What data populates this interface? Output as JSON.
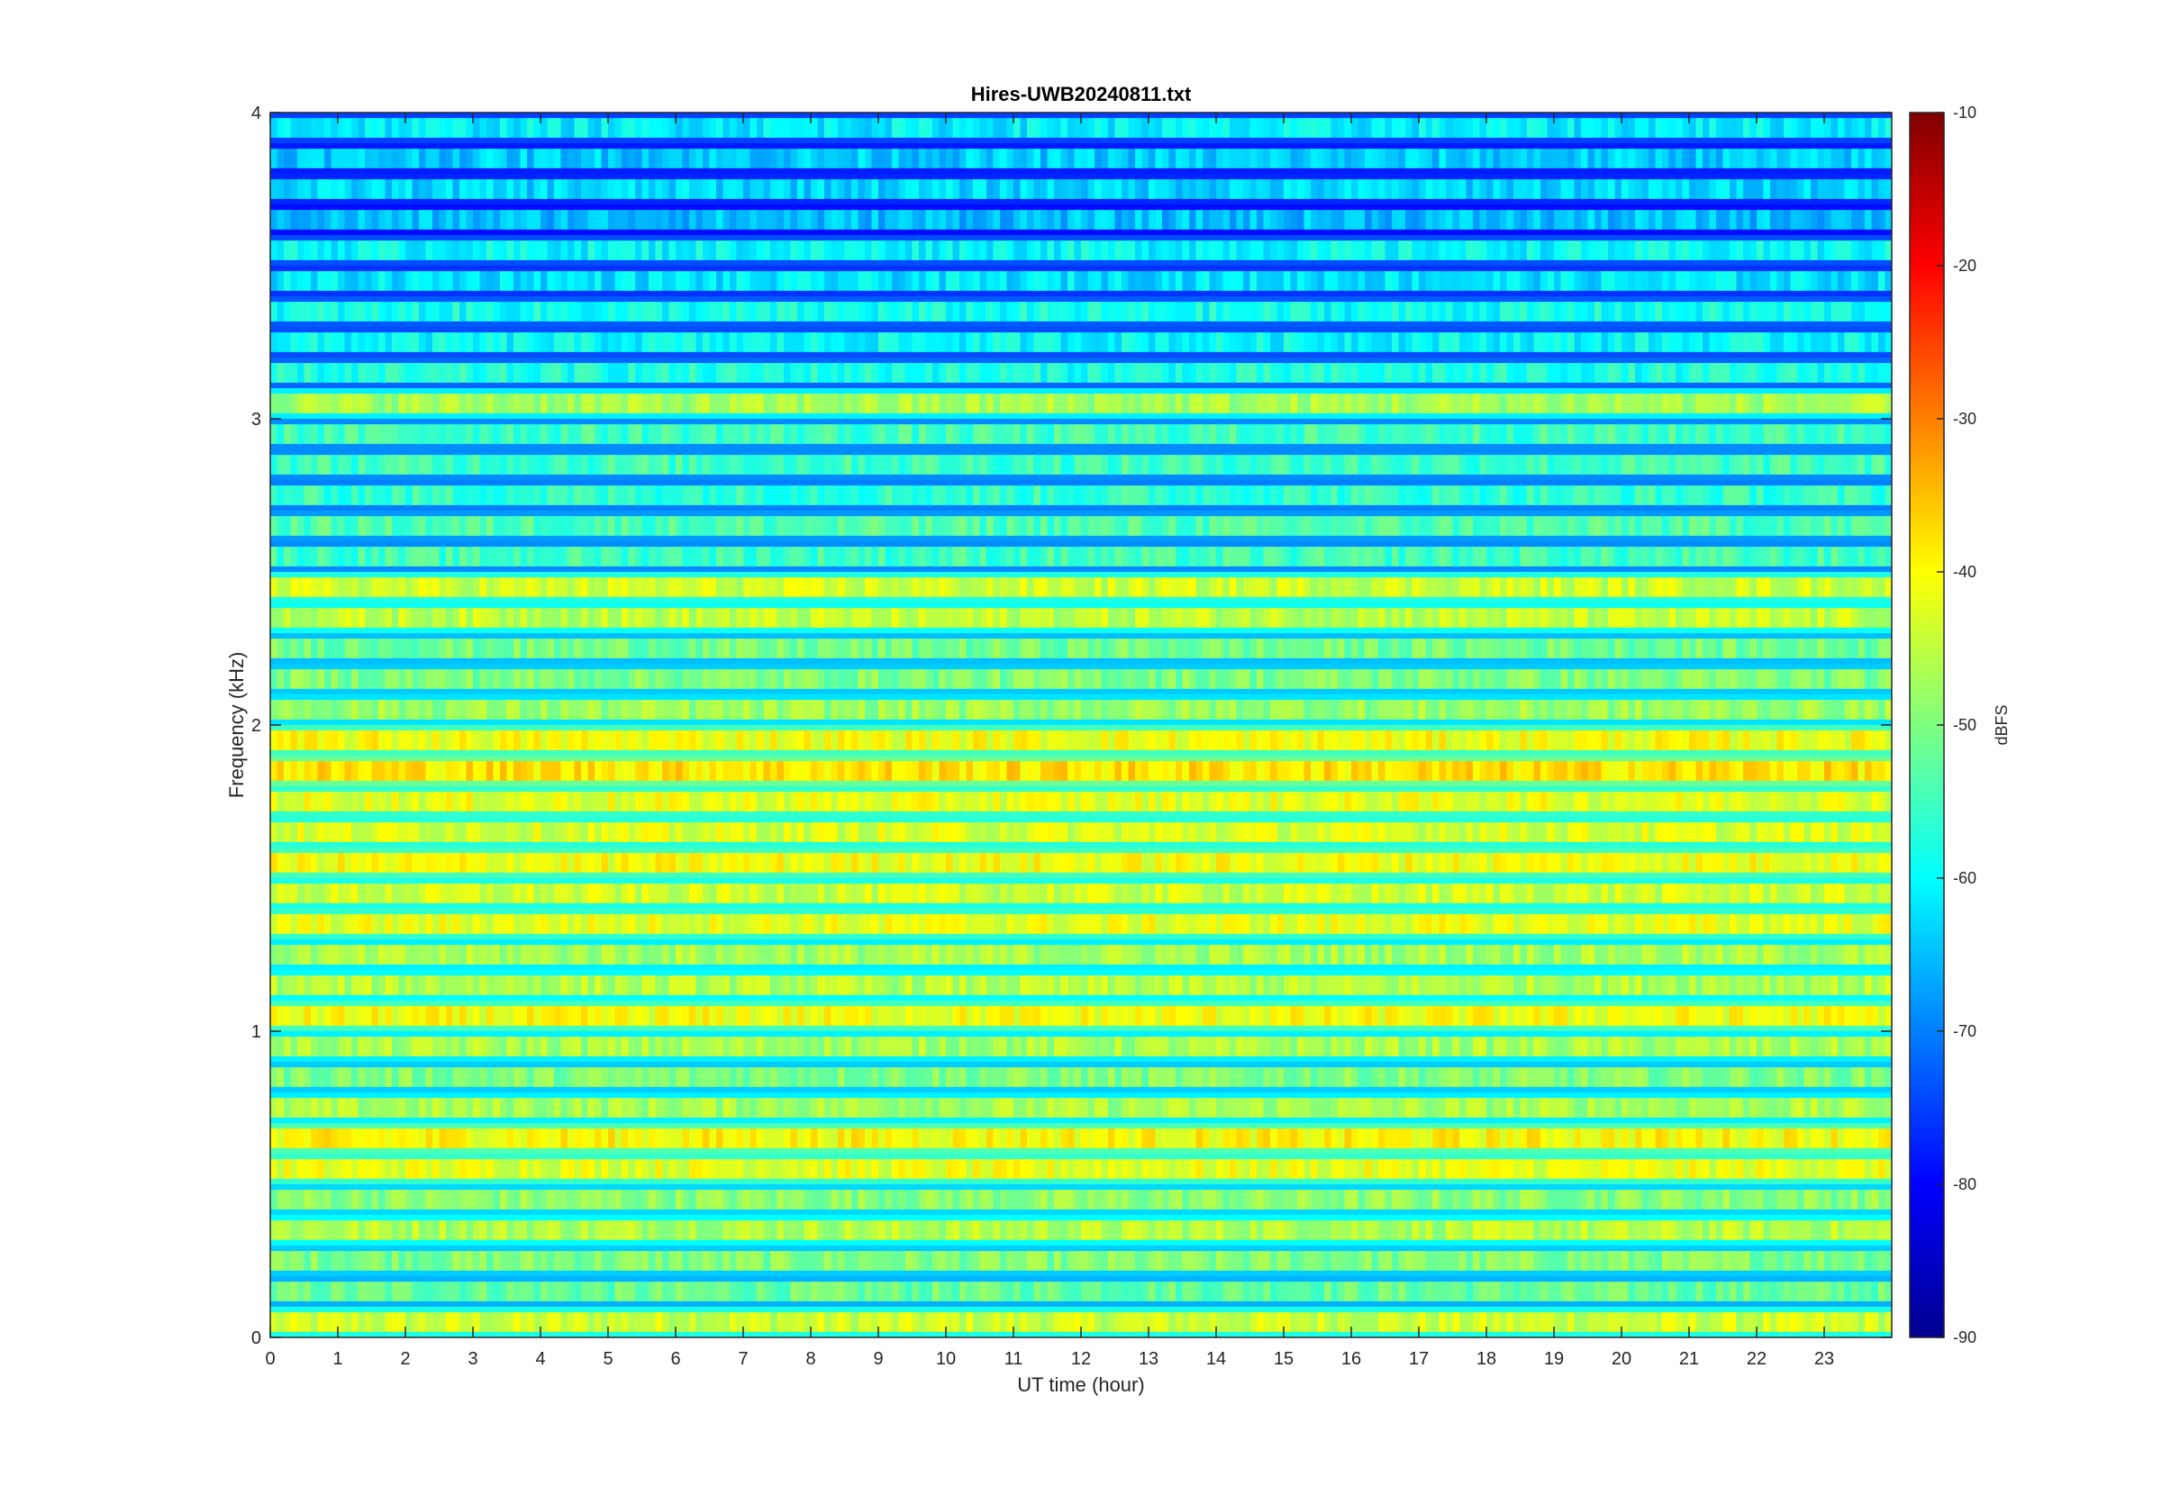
{
  "chart_data": {
    "type": "heatmap",
    "title": "Hires-UWB20240811.txt",
    "xlabel": "UT time (hour)",
    "ylabel": "Frequency (kHz)",
    "xlim": [
      0,
      24
    ],
    "ylim": [
      0,
      4
    ],
    "x_ticks": [
      "0",
      "1",
      "2",
      "3",
      "4",
      "5",
      "6",
      "7",
      "8",
      "9",
      "10",
      "11",
      "12",
      "13",
      "14",
      "15",
      "16",
      "17",
      "18",
      "19",
      "20",
      "21",
      "22",
      "23"
    ],
    "y_ticks": [
      "0",
      "1",
      "2",
      "3",
      "4"
    ],
    "colorbar": {
      "label": "dBFS",
      "range": [
        -90,
        -10
      ],
      "ticks": [
        "-10",
        "-20",
        "-30",
        "-40",
        "-50",
        "-60",
        "-70",
        "-80",
        "-90"
      ],
      "colormap": "jet"
    },
    "grid": false,
    "band_spacing_khz": 0.1,
    "bands": [
      {
        "f": 0.05,
        "level": -44
      },
      {
        "f": 0.15,
        "level": -52
      },
      {
        "f": 0.25,
        "level": -50
      },
      {
        "f": 0.35,
        "level": -46
      },
      {
        "f": 0.45,
        "level": -49
      },
      {
        "f": 0.55,
        "level": -42
      },
      {
        "f": 0.65,
        "level": -40
      },
      {
        "f": 0.75,
        "level": -47
      },
      {
        "f": 0.85,
        "level": -50
      },
      {
        "f": 0.95,
        "level": -47
      },
      {
        "f": 1.05,
        "level": -41
      },
      {
        "f": 1.15,
        "level": -46
      },
      {
        "f": 1.25,
        "level": -47
      },
      {
        "f": 1.35,
        "level": -42
      },
      {
        "f": 1.45,
        "level": -44
      },
      {
        "f": 1.55,
        "level": -41
      },
      {
        "f": 1.65,
        "level": -43
      },
      {
        "f": 1.75,
        "level": -42
      },
      {
        "f": 1.85,
        "level": -38
      },
      {
        "f": 1.95,
        "level": -41
      },
      {
        "f": 2.05,
        "level": -48
      },
      {
        "f": 2.15,
        "level": -50
      },
      {
        "f": 2.25,
        "level": -51
      },
      {
        "f": 2.35,
        "level": -45
      },
      {
        "f": 2.45,
        "level": -44
      },
      {
        "f": 2.55,
        "level": -55
      },
      {
        "f": 2.65,
        "level": -54
      },
      {
        "f": 2.75,
        "level": -56
      },
      {
        "f": 2.85,
        "level": -55
      },
      {
        "f": 2.95,
        "level": -55
      },
      {
        "f": 3.05,
        "level": -47
      },
      {
        "f": 3.15,
        "level": -58
      },
      {
        "f": 3.25,
        "level": -60
      },
      {
        "f": 3.35,
        "level": -59
      },
      {
        "f": 3.45,
        "level": -62
      },
      {
        "f": 3.55,
        "level": -60
      },
      {
        "f": 3.65,
        "level": -65
      },
      {
        "f": 3.75,
        "level": -63
      },
      {
        "f": 3.85,
        "level": -64
      },
      {
        "f": 3.95,
        "level": -61
      }
    ],
    "colors": {
      "axis": "#262626",
      "background": "#ffffff"
    }
  }
}
